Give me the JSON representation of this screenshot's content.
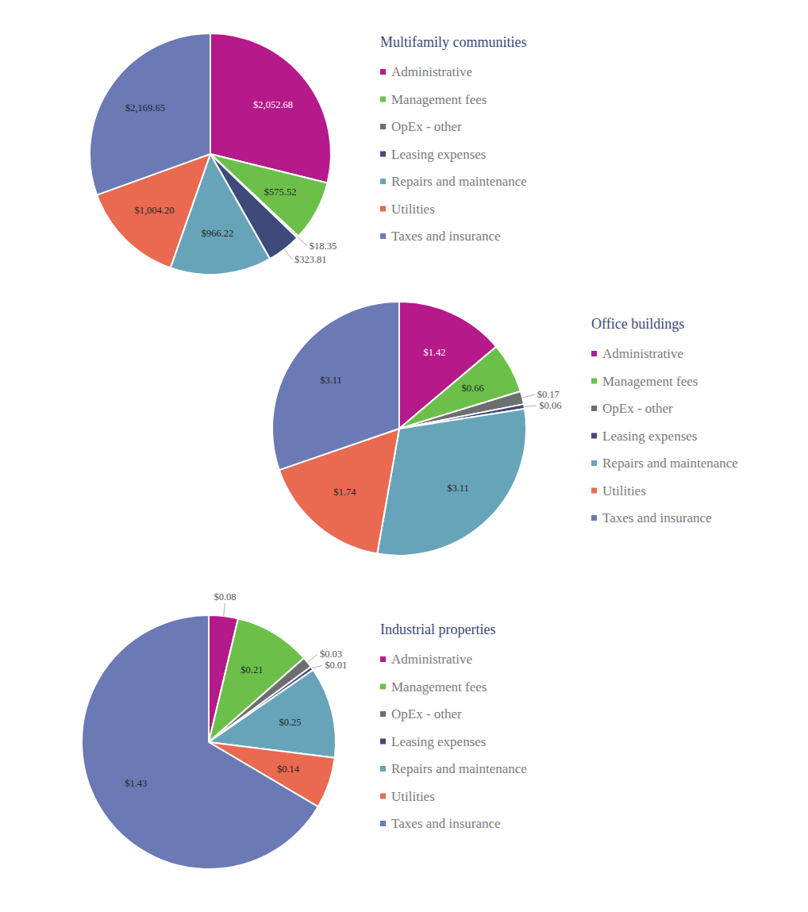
{
  "chart_data": [
    {
      "type": "pie",
      "title": "Multifamily communities",
      "categories": [
        "Administrative",
        "Management fees",
        "OpEx - other",
        "Leasing expenses",
        "Repairs and maintenance",
        "Utilities",
        "Taxes and insurance"
      ],
      "values": [
        2052.68,
        575.52,
        18.35,
        323.81,
        966.22,
        1004.2,
        2169.65
      ],
      "value_labels": [
        "$2,052.68",
        "$575.52",
        "$18.35",
        "$323.81",
        "$966.22",
        "$1,004.20",
        "$2,169.65"
      ],
      "colors": [
        "#b5198a",
        "#6cc04a",
        "#6d6e70",
        "#3e4a7a",
        "#68a4b9",
        "#e96a50",
        "#6b79b5"
      ],
      "data_labels": true,
      "legend": "right"
    },
    {
      "type": "pie",
      "title": "Office buildings",
      "categories": [
        "Administrative",
        "Management fees",
        "OpEx - other",
        "Leasing expenses",
        "Repairs and maintenance",
        "Utilities",
        "Taxes and insurance"
      ],
      "values": [
        1.42,
        0.66,
        0.17,
        0.06,
        3.11,
        1.74,
        3.11
      ],
      "value_labels": [
        "$1.42",
        "$0.66",
        "$0.17",
        "$0.06",
        "$3.11",
        "$1.74",
        "$3.11"
      ],
      "colors": [
        "#b5198a",
        "#6cc04a",
        "#6d6e70",
        "#3e4a7a",
        "#68a4b9",
        "#e96a50",
        "#6b79b5"
      ],
      "data_labels": true,
      "legend": "right"
    },
    {
      "type": "pie",
      "title": "Industrial properties",
      "categories": [
        "Administrative",
        "Management fees",
        "OpEx - other",
        "Leasing expenses",
        "Repairs and maintenance",
        "Utilities",
        "Taxes and insurance"
      ],
      "values": [
        0.08,
        0.21,
        0.03,
        0.01,
        0.25,
        0.14,
        1.43
      ],
      "value_labels": [
        "$0.08",
        "$0.21",
        "$0.03",
        "$0.01",
        "$0.25",
        "$0.14",
        "$1.43"
      ],
      "colors": [
        "#b5198a",
        "#6cc04a",
        "#6d6e70",
        "#3e4a7a",
        "#68a4b9",
        "#e96a50",
        "#6b79b5"
      ],
      "data_labels": true,
      "legend": "right"
    }
  ]
}
